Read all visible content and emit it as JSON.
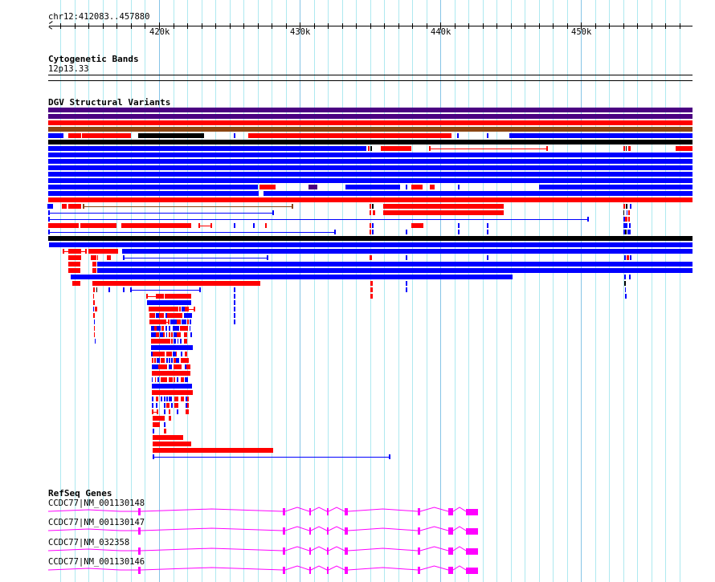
{
  "ruler": {
    "region_label": "chr12:412083..457880",
    "region_start_bp": 412083,
    "region_end_bp": 457880,
    "major_ticks": [
      "420k",
      "430k",
      "440k",
      "450k"
    ]
  },
  "tracks": {
    "cytoband": {
      "title": "Cytogenetic Bands",
      "band_label": "12p13.33"
    },
    "dgv": {
      "title": "DGV Structural Variants"
    },
    "refseq": {
      "title": "RefSeq Genes",
      "genes": [
        {
          "label": "CCDC77|NM_001130148"
        },
        {
          "label": "CCDC77|NM_001130147"
        },
        {
          "label": "CCDC77|NM_032358"
        },
        {
          "label": "CCDC77|NM_001130146"
        }
      ]
    }
  },
  "colors": {
    "loss": "#ff0000",
    "gain": "#0000ff",
    "inversion": "#4b0082",
    "complex": "#8b4513",
    "other": "#000000",
    "gene": "#ff00ff",
    "grid_minor": "#aee9f0",
    "grid_major": "#86c4e6"
  }
}
